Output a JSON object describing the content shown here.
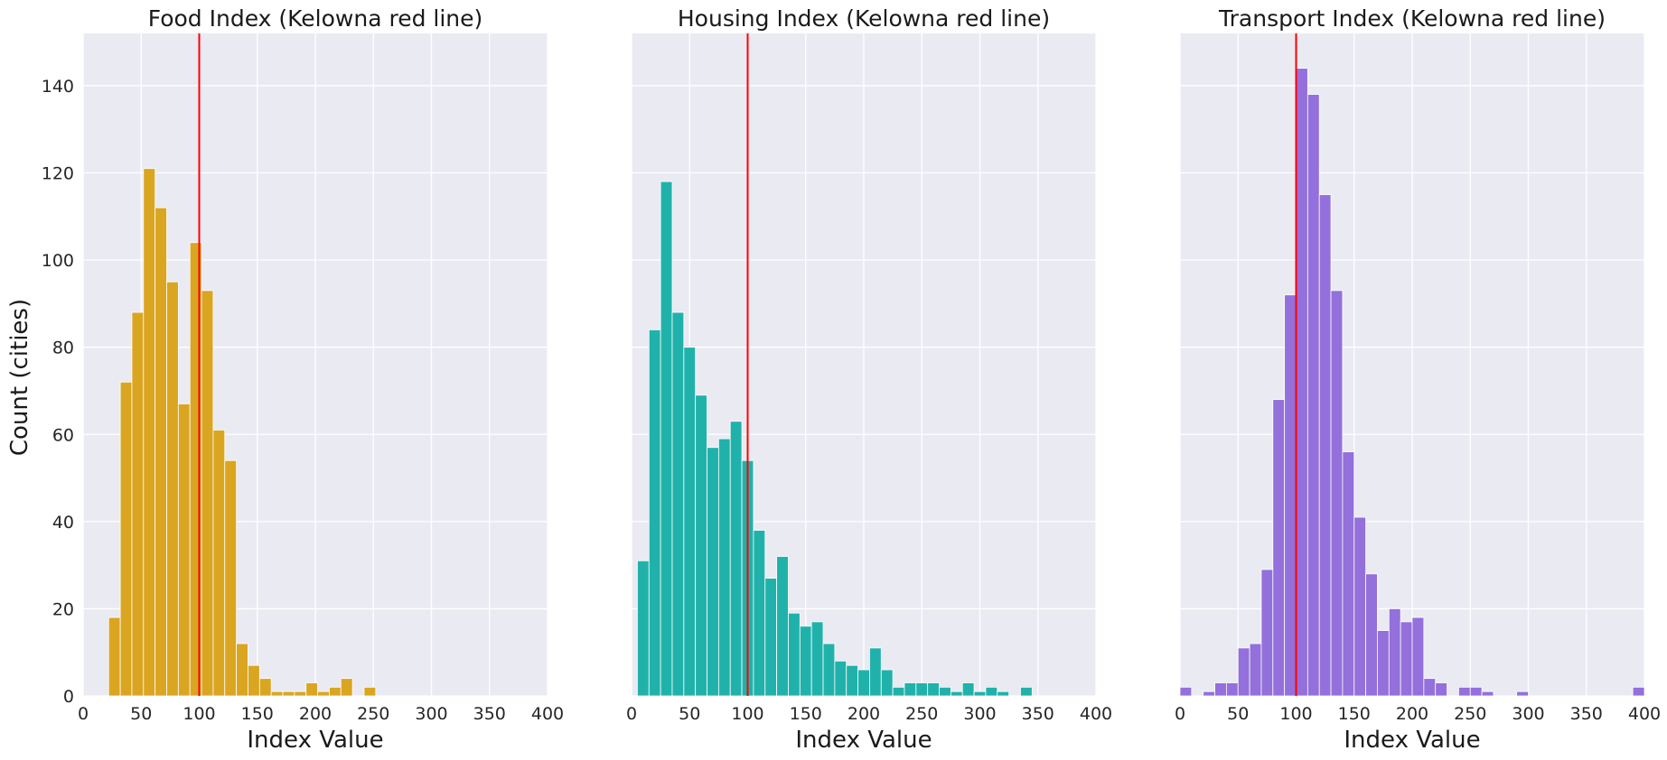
{
  "figure": {
    "ylabel": "Count (cities)"
  },
  "chart_data": [
    {
      "type": "bar",
      "title": "Food Index (Kelowna red line)",
      "xlabel": "Index Value",
      "xlim": [
        0,
        400
      ],
      "ylim": [
        0,
        152
      ],
      "xticks": [
        "0",
        "50",
        "100",
        "150",
        "200",
        "250",
        "300",
        "350",
        "400"
      ],
      "yticks": [
        "0",
        "20",
        "40",
        "60",
        "80",
        "100",
        "120",
        "140"
      ],
      "show_yticks": true,
      "grid": true,
      "bar_color": "#DAA520",
      "reference_line": {
        "x": 100,
        "color": "#FF0000"
      },
      "bin_edges": [
        22.0,
        32.0,
        42.0,
        52.0,
        62.0,
        72.0,
        82.0,
        92.0,
        102.0,
        112.0,
        122.0,
        132.0,
        142.0,
        152.0,
        162.0,
        172.0,
        182.0,
        192.0,
        202.0,
        212.0,
        222.0,
        232.0,
        242.0,
        252.0
      ],
      "values": [
        18,
        72,
        88,
        121,
        112,
        95,
        67,
        104,
        93,
        61,
        54,
        12,
        7,
        4,
        1,
        1,
        1,
        3,
        1,
        2,
        4,
        0,
        2
      ]
    },
    {
      "type": "bar",
      "title": "Housing Index (Kelowna red line)",
      "xlabel": "Index Value",
      "xlim": [
        0,
        400
      ],
      "ylim": [
        0,
        152
      ],
      "xticks": [
        "0",
        "50",
        "100",
        "150",
        "200",
        "250",
        "300",
        "350",
        "400"
      ],
      "yticks": [
        "0",
        "20",
        "40",
        "60",
        "80",
        "100",
        "120",
        "140"
      ],
      "show_yticks": false,
      "grid": true,
      "bar_color": "#20B2AA",
      "reference_line": {
        "x": 100,
        "color": "#FF0000"
      },
      "bin_edges": [
        5.0,
        15.0,
        25.0,
        35.0,
        45.0,
        55.0,
        65.0,
        75.0,
        85.0,
        95.0,
        105.0,
        115.0,
        125.0,
        135.0,
        145.0,
        155.0,
        165.0,
        175.0,
        185.0,
        195.0,
        205.0,
        215.0,
        225.0,
        235.0,
        245.0,
        255.0,
        265.0,
        275.0,
        285.0,
        295.0,
        305.0,
        315.0,
        325.0,
        335.0,
        345.0
      ],
      "values": [
        31,
        84,
        118,
        88,
        80,
        69,
        57,
        59,
        63,
        54,
        38,
        27,
        32,
        19,
        16,
        17,
        12,
        8,
        7,
        6,
        11,
        6,
        2,
        3,
        3,
        3,
        2,
        1,
        3,
        1,
        2,
        1,
        0,
        2
      ]
    },
    {
      "type": "bar",
      "title": "Transport Index (Kelowna red line)",
      "xlabel": "Index Value",
      "xlim": [
        0,
        400
      ],
      "ylim": [
        0,
        152
      ],
      "xticks": [
        "0",
        "50",
        "100",
        "150",
        "200",
        "250",
        "300",
        "350",
        "400"
      ],
      "yticks": [
        "0",
        "20",
        "40",
        "60",
        "80",
        "100",
        "120",
        "140"
      ],
      "show_yticks": false,
      "grid": true,
      "bar_color": "#9370DB",
      "reference_line": {
        "x": 100,
        "color": "#FF0000"
      },
      "bin_edges": [
        0.0,
        10.0,
        20.0,
        30.0,
        40.0,
        50.0,
        60.0,
        70.0,
        80.0,
        90.0,
        100.0,
        110.0,
        120.0,
        130.0,
        140.0,
        150.0,
        160.0,
        170.0,
        180.0,
        190.0,
        200.0,
        210.0,
        220.0,
        230.0,
        240.0,
        250.0,
        260.0,
        270.0,
        280.0,
        290.0,
        300.0,
        310.0,
        320.0,
        330.0,
        340.0,
        350.0,
        360.0,
        370.0,
        380.0,
        390.0,
        400.0
      ],
      "values": [
        2,
        0,
        1,
        3,
        3,
        11,
        12,
        29,
        68,
        92,
        144,
        138,
        115,
        93,
        56,
        41,
        28,
        15,
        20,
        17,
        18,
        4,
        3,
        0,
        2,
        2,
        1,
        0,
        0,
        1,
        0,
        0,
        0,
        0,
        0,
        0,
        0,
        0,
        0,
        2
      ]
    }
  ]
}
